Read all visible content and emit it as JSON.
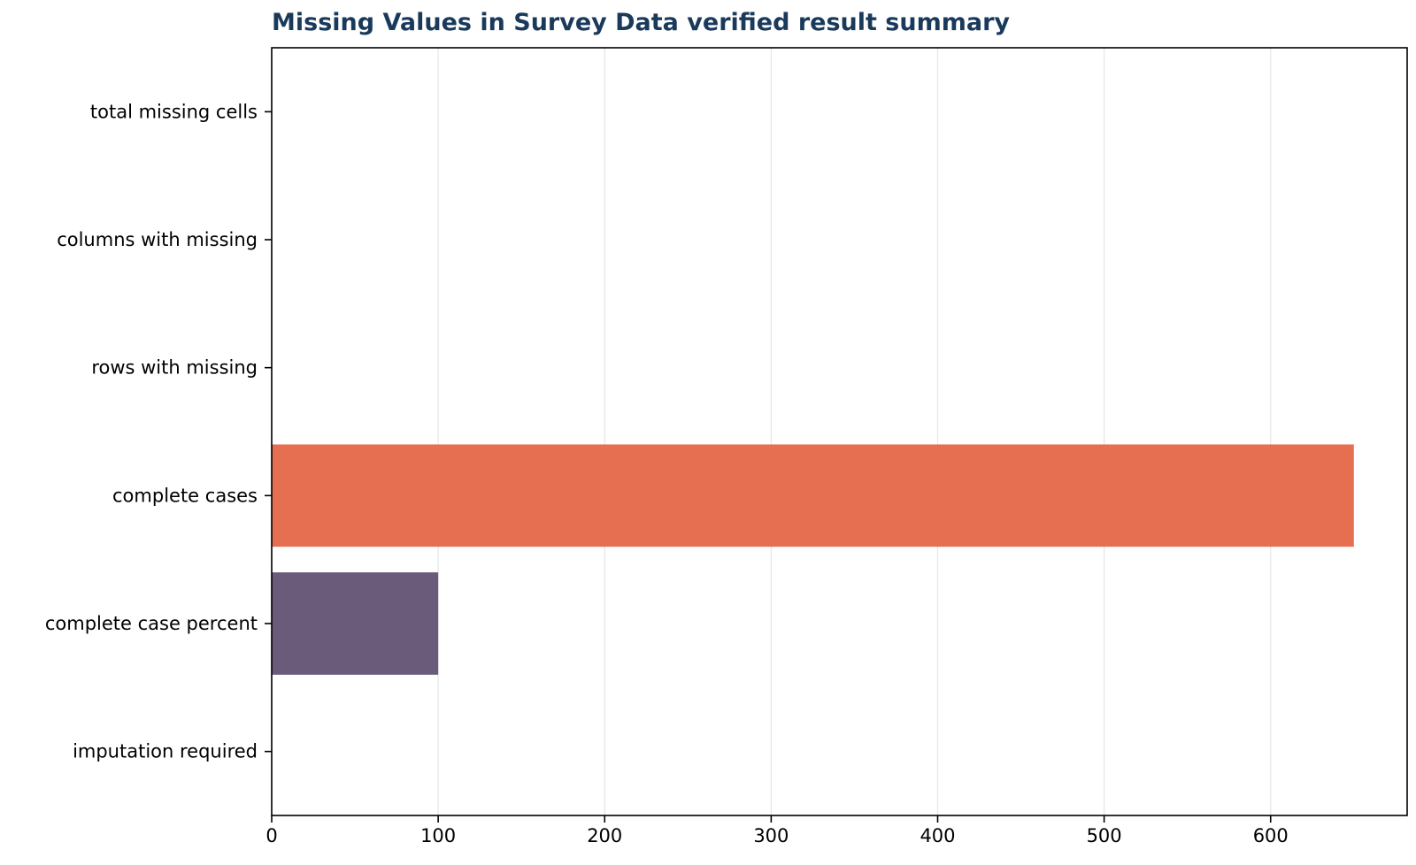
{
  "chart_data": {
    "type": "bar",
    "orientation": "horizontal",
    "title": "Missing Values in Survey Data verified result summary",
    "xlabel": "",
    "ylabel": "",
    "categories": [
      "total missing cells",
      "columns with missing",
      "rows with missing",
      "complete cases",
      "complete case percent",
      "imputation required"
    ],
    "values": [
      0,
      0,
      0,
      650,
      100,
      0
    ],
    "bar_colors": [
      "#e76f51",
      "#2a9d8f",
      "#6b5b7b",
      "#e76f51",
      "#6b5b7b",
      "#2a9d8f"
    ],
    "xlim": [
      0,
      682
    ],
    "xticks": [
      0,
      100,
      200,
      300,
      400,
      500,
      600
    ],
    "grid": "x",
    "legend": "none"
  },
  "colors": {
    "title": "#1a3a5c",
    "axis": "#000000",
    "grid": "#e6e6e6"
  }
}
